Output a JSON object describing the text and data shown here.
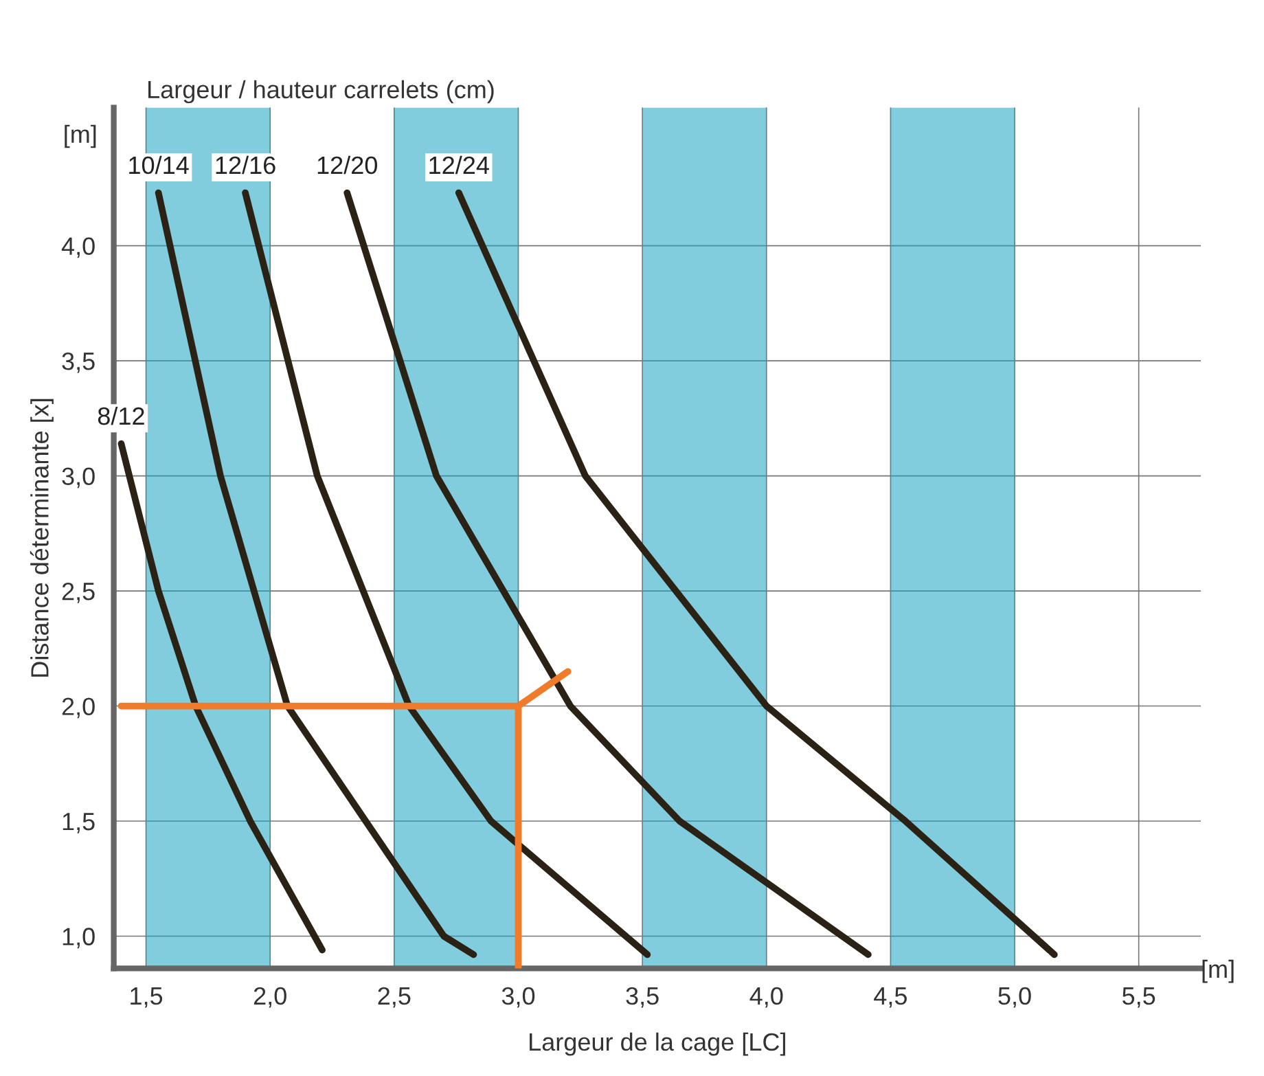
{
  "chart_data": {
    "type": "line",
    "xlabel": "Largeur de la cage [LC]",
    "ylabel": "Distance déterminante [x]",
    "annotations": [
      "Largeur / hauteur carrelets (cm)",
      "[m]",
      "[m]"
    ],
    "xlim": [
      1.37,
      5.75
    ],
    "ylim": [
      0.86,
      4.6
    ],
    "xticks": [
      {
        "value": 1.5,
        "label": "1,5"
      },
      {
        "value": 2.0,
        "label": "2,0"
      },
      {
        "value": 2.5,
        "label": "2,5"
      },
      {
        "value": 3.0,
        "label": "3,0"
      },
      {
        "value": 3.5,
        "label": "3,5"
      },
      {
        "value": 4.0,
        "label": "4,0"
      },
      {
        "value": 4.5,
        "label": "4,5"
      },
      {
        "value": 5.0,
        "label": "5,0"
      },
      {
        "value": 5.5,
        "label": "5,5"
      }
    ],
    "yticks": [
      {
        "value": 1.0,
        "label": "1,0"
      },
      {
        "value": 1.5,
        "label": "1,5"
      },
      {
        "value": 2.0,
        "label": "2,0"
      },
      {
        "value": 2.5,
        "label": "2,5"
      },
      {
        "value": 3.0,
        "label": "3,0"
      },
      {
        "value": 3.5,
        "label": "3,5"
      },
      {
        "value": 4.0,
        "label": "4,0"
      }
    ],
    "grid": true,
    "legend": false,
    "bands": [
      {
        "axis": "x",
        "from": 1.5,
        "to": 2.0,
        "color": "#1aa3c1"
      },
      {
        "axis": "x",
        "from": 2.5,
        "to": 3.0,
        "color": "#1aa3c1"
      },
      {
        "axis": "x",
        "from": 3.5,
        "to": 4.0,
        "color": "#1aa3c1"
      },
      {
        "axis": "x",
        "from": 4.5,
        "to": 5.0,
        "color": "#1aa3c1"
      }
    ],
    "series": [
      {
        "name": "8/12",
        "color": "#2a2214",
        "x": [
          1.4,
          1.55,
          1.7,
          1.92,
          2.21
        ],
        "values": [
          3.14,
          2.5,
          2.0,
          1.5,
          0.94
        ]
      },
      {
        "name": "10/14",
        "color": "#2a2214",
        "x": [
          1.55,
          1.8,
          2.07,
          2.7,
          2.82
        ],
        "values": [
          4.23,
          3.0,
          2.0,
          1.0,
          0.92
        ]
      },
      {
        "name": "12/16",
        "color": "#2a2214",
        "x": [
          1.9,
          2.19,
          2.56,
          2.89,
          3.52
        ],
        "values": [
          4.23,
          3.0,
          2.0,
          1.5,
          0.92
        ]
      },
      {
        "name": "12/20",
        "color": "#2a2214",
        "x": [
          2.31,
          2.67,
          3.21,
          3.65,
          4.41
        ],
        "values": [
          4.23,
          3.0,
          2.0,
          1.5,
          0.92
        ]
      },
      {
        "name": "12/24",
        "color": "#2a2214",
        "x": [
          2.76,
          3.27,
          4.0,
          4.56,
          5.16
        ],
        "values": [
          4.23,
          3.0,
          2.0,
          1.5,
          0.92
        ]
      },
      {
        "color": "#f07b2a",
        "x": [
          1.4,
          3.0,
          3.0
        ],
        "values": [
          2.0,
          2.0,
          0.86
        ]
      },
      {
        "color": "#f07b2a",
        "x": [
          3.0,
          3.2
        ],
        "values": [
          2.0,
          2.15
        ]
      }
    ]
  }
}
